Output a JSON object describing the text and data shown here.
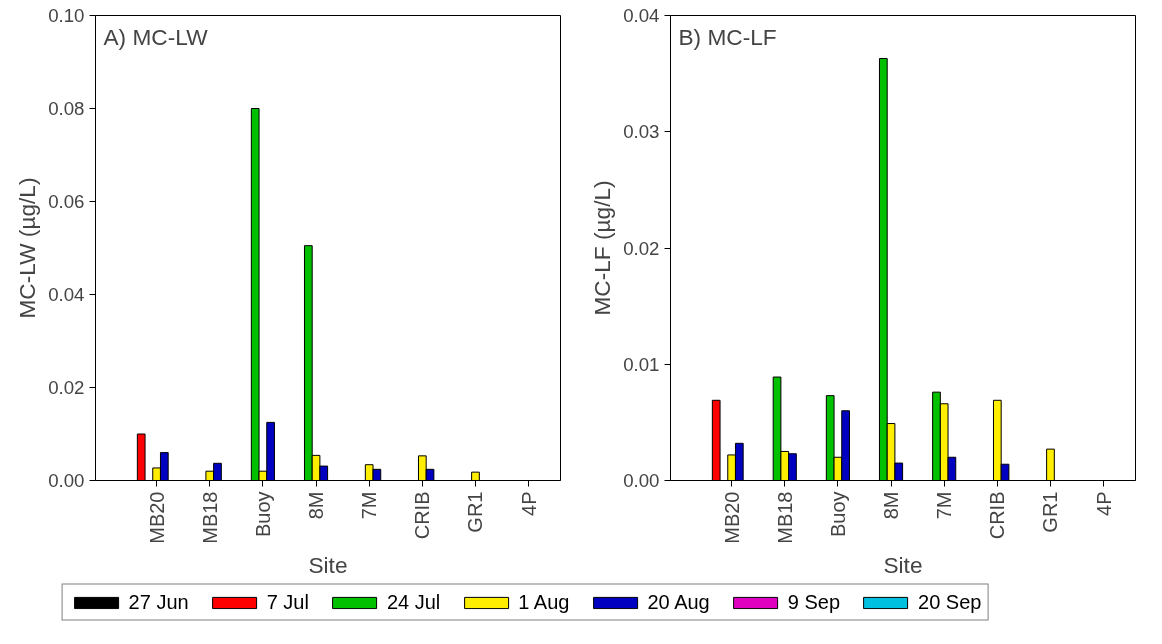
{
  "chart_data": [
    {
      "type": "bar",
      "title": "A) MC-LW",
      "xlabel": "Site",
      "ylabel": "MC-LW (µg/L)",
      "categories": [
        "MB20",
        "MB18",
        "Buoy",
        "8M",
        "7M",
        "CRIB",
        "GR1",
        "4P"
      ],
      "ylim": [
        0,
        0.1
      ],
      "yticks": [
        {
          "value": 0,
          "label": "0.00"
        },
        {
          "value": 0.02,
          "label": "0.02"
        },
        {
          "value": 0.04,
          "label": "0.04"
        },
        {
          "value": 0.06,
          "label": "0.06"
        },
        {
          "value": 0.08,
          "label": "0.08"
        },
        {
          "value": 0.1,
          "label": "0.10"
        }
      ],
      "grid": false,
      "legend": "bottom",
      "series": [
        {
          "name": "27 Jun",
          "color": "#000000",
          "values": [
            null,
            null,
            null,
            null,
            null,
            null,
            null,
            null
          ]
        },
        {
          "name": "7 Jul",
          "color": "#ff0000",
          "values": [
            0.01,
            null,
            null,
            null,
            null,
            null,
            null,
            null
          ]
        },
        {
          "name": "24 Jul",
          "color": "#00c000",
          "values": [
            null,
            null,
            0.08,
            0.0505,
            null,
            null,
            null,
            null
          ]
        },
        {
          "name": "1 Aug",
          "color": "#ffee00",
          "values": [
            0.0027,
            0.002,
            0.002,
            0.0054,
            0.0034,
            0.0053,
            0.0018,
            null
          ]
        },
        {
          "name": "20 Aug",
          "color": "#0000c0",
          "values": [
            0.006,
            0.0037,
            0.0125,
            0.0031,
            0.0024,
            0.0024,
            null,
            null
          ]
        },
        {
          "name": "9 Sep",
          "color": "#e000c0",
          "values": [
            null,
            null,
            null,
            null,
            null,
            null,
            null,
            null
          ]
        },
        {
          "name": "20 Sep",
          "color": "#00c0e0",
          "values": [
            null,
            null,
            null,
            null,
            null,
            null,
            null,
            null
          ]
        }
      ]
    },
    {
      "type": "bar",
      "title": "B) MC-LF",
      "xlabel": "Site",
      "ylabel": "MC-LF (µg/L)",
      "categories": [
        "MB20",
        "MB18",
        "Buoy",
        "8M",
        "7M",
        "CRIB",
        "GR1",
        "4P"
      ],
      "ylim": [
        0,
        0.04
      ],
      "yticks": [
        {
          "value": 0,
          "label": "0.00"
        },
        {
          "value": 0.01,
          "label": "0.01"
        },
        {
          "value": 0.02,
          "label": "0.02"
        },
        {
          "value": 0.03,
          "label": "0.03"
        },
        {
          "value": 0.04,
          "label": "0.04"
        }
      ],
      "grid": false,
      "series": [
        {
          "values": [
            null,
            null,
            null,
            null,
            null,
            null,
            null,
            null
          ]
        },
        {
          "color": "#ff0000",
          "values": [
            0.0069,
            null,
            null,
            null,
            null,
            null,
            null,
            null
          ]
        },
        {
          "color": "#00c000",
          "values": [
            null,
            0.0089,
            0.0073,
            0.0363,
            0.0076,
            null,
            null,
            null
          ]
        },
        {
          "color": "#ffee00",
          "values": [
            0.0022,
            0.0025,
            0.002,
            0.0049,
            0.0066,
            0.0069,
            0.0027,
            null
          ]
        },
        {
          "color": "#0000c0",
          "values": [
            0.0032,
            0.0023,
            0.006,
            0.0015,
            0.002,
            0.0014,
            null,
            null
          ]
        },
        {
          "values": [
            null,
            null,
            null,
            null,
            null,
            null,
            null,
            null
          ]
        },
        {
          "values": [
            null,
            null,
            null,
            null,
            null,
            null,
            null,
            null
          ]
        }
      ]
    }
  ]
}
